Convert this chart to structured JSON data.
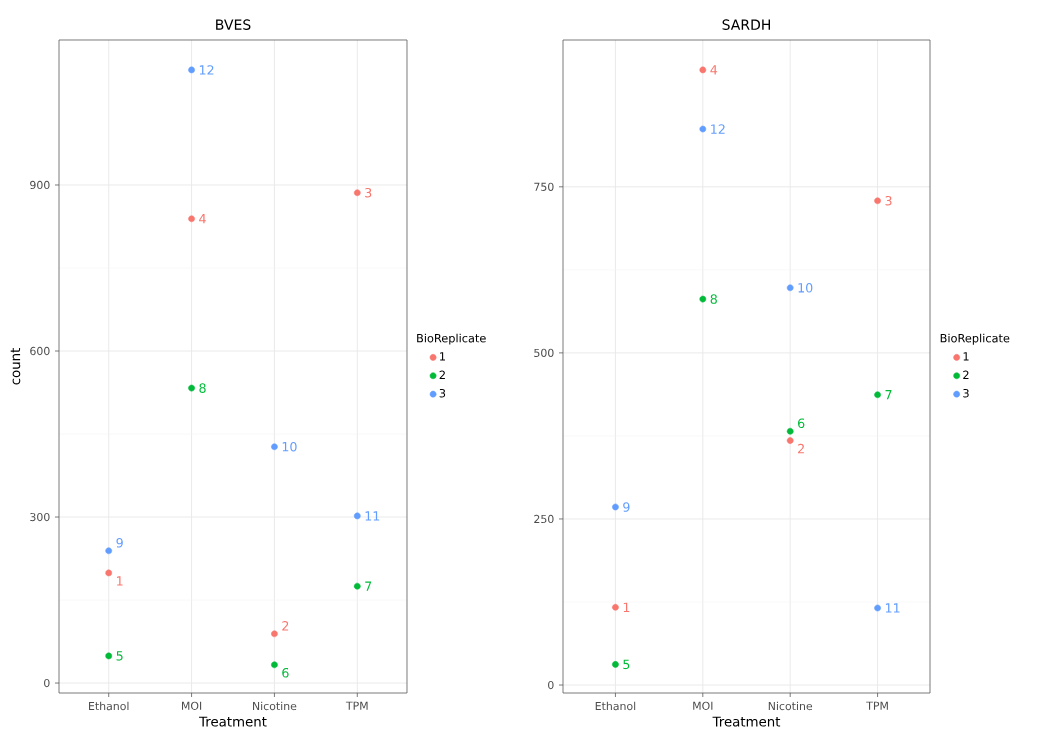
{
  "chart_data": [
    {
      "type": "scatter",
      "title": "BVES",
      "xlabel": "Treatment",
      "ylabel": "count",
      "legend_title": "BioReplicate",
      "categories": [
        "Ethanol",
        "MOI",
        "Nicotine",
        "TPM"
      ],
      "ylim": [
        -18,
        1162
      ],
      "yticks": [
        0,
        300,
        600,
        900
      ],
      "grid": true,
      "legend": "right",
      "marker": "circle",
      "series": [
        {
          "name": "1",
          "color": "#f8766d",
          "values": [
            199,
            839,
            89,
            886
          ]
        },
        {
          "name": "2",
          "color": "#00ba38",
          "values": [
            49,
            533,
            33,
            175
          ]
        },
        {
          "name": "3",
          "color": "#619cff",
          "values": [
            239,
            1108,
            427,
            302
          ]
        }
      ],
      "annotations": [
        {
          "text": "1",
          "x": "Ethanol",
          "y": 199
        },
        {
          "text": "2",
          "x": "Nicotine",
          "y": 89
        },
        {
          "text": "3",
          "x": "TPM",
          "y": 886
        },
        {
          "text": "4",
          "x": "MOI",
          "y": 839
        },
        {
          "text": "5",
          "x": "Ethanol",
          "y": 49
        },
        {
          "text": "6",
          "x": "Nicotine",
          "y": 33
        },
        {
          "text": "7",
          "x": "TPM",
          "y": 175
        },
        {
          "text": "8",
          "x": "MOI",
          "y": 533
        },
        {
          "text": "9",
          "x": "Ethanol",
          "y": 239
        },
        {
          "text": "10",
          "x": "Nicotine",
          "y": 427
        },
        {
          "text": "11",
          "x": "TPM",
          "y": 302
        },
        {
          "text": "12",
          "x": "MOI",
          "y": 1108
        }
      ]
    },
    {
      "type": "scatter",
      "title": "SARDH",
      "xlabel": "Treatment",
      "legend_title": "BioReplicate",
      "categories": [
        "Ethanol",
        "MOI",
        "Nicotine",
        "TPM"
      ],
      "ylim": [
        -12,
        971
      ],
      "yticks": [
        0,
        250,
        500,
        750
      ],
      "grid": true,
      "legend": "right",
      "marker": "circle",
      "series": [
        {
          "name": "1",
          "color": "#f8766d",
          "values": [
            117,
            926,
            368,
            729
          ]
        },
        {
          "name": "2",
          "color": "#00ba38",
          "values": [
            31,
            581,
            382,
            437
          ]
        },
        {
          "name": "3",
          "color": "#619cff",
          "values": [
            268,
            837,
            598,
            116
          ]
        }
      ],
      "annotations": [
        {
          "text": "1",
          "x": "Ethanol",
          "y": 117
        },
        {
          "text": "2",
          "x": "Nicotine",
          "y": 368
        },
        {
          "text": "3",
          "x": "TPM",
          "y": 729
        },
        {
          "text": "4",
          "x": "MOI",
          "y": 926
        },
        {
          "text": "5",
          "x": "Ethanol",
          "y": 31
        },
        {
          "text": "6",
          "x": "Nicotine",
          "y": 382
        },
        {
          "text": "7",
          "x": "TPM",
          "y": 437
        },
        {
          "text": "8",
          "x": "MOI",
          "y": 581
        },
        {
          "text": "9",
          "x": "Ethanol",
          "y": 268
        },
        {
          "text": "10",
          "x": "Nicotine",
          "y": 598
        },
        {
          "text": "11",
          "x": "TPM",
          "y": 116
        },
        {
          "text": "12",
          "x": "MOI",
          "y": 837
        }
      ]
    }
  ]
}
